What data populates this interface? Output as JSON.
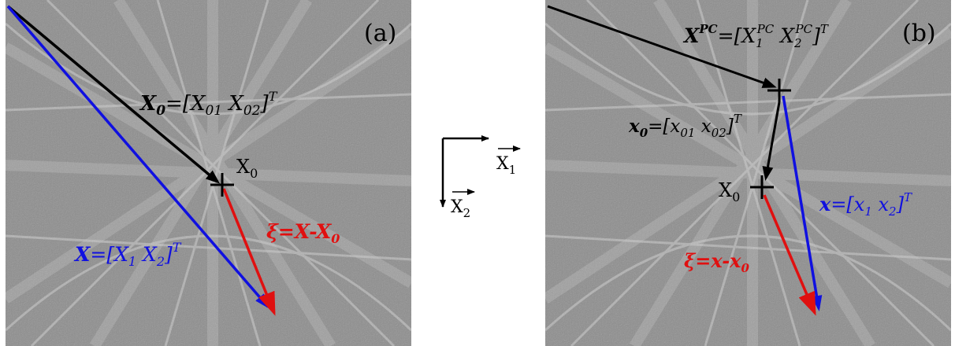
{
  "panel_a": {
    "tag": "(a)",
    "x0_vector": {
      "bold": "X",
      "sub": "0",
      "rest": "=[X",
      "c1": "01",
      "mid": "  X",
      "c2": "02",
      "close": "]",
      "sup": "T"
    },
    "x_vector": {
      "bold": "X",
      "rest": "=[X",
      "c1": "1",
      "mid": "  X",
      "c2": "2",
      "close": "]",
      "sup": "T"
    },
    "xi_vector": {
      "sym": "ξ",
      "rest": "=X-X",
      "sub": "0"
    },
    "point": {
      "main": "X",
      "sub": "0"
    }
  },
  "axes": {
    "x1": {
      "main": "X",
      "sub": "1"
    },
    "x2": {
      "main": "X",
      "sub": "2"
    }
  },
  "panel_b": {
    "tag": "(b)",
    "xpc_vector": {
      "bold": "X",
      "sup0": "PC",
      "rest": "=[X",
      "c1sub": "1",
      "c1sup": "PC",
      "mid": "  X",
      "c2sub": "2",
      "c2sup": "PC",
      "close": "]",
      "sup": "T"
    },
    "x0_vector": {
      "bold": "x",
      "sub": "0",
      "rest": "=[x",
      "c1": "01",
      "mid": "  x",
      "c2": "02",
      "close": "]",
      "sup": "T"
    },
    "x_vector": {
      "bold": "x",
      "rest": "=[x",
      "c1": "1",
      "mid": "  x",
      "c2": "2",
      "close": "]",
      "sup": "T"
    },
    "xi_vector": {
      "sym": "ξ",
      "rest": "=x-x",
      "sub": "0"
    },
    "point": {
      "main": "X",
      "sub": "0"
    }
  },
  "colors": {
    "black": "#000000",
    "blue": "#1010e0",
    "red": "#e01010",
    "bg_gray": "#8c8c8c"
  }
}
